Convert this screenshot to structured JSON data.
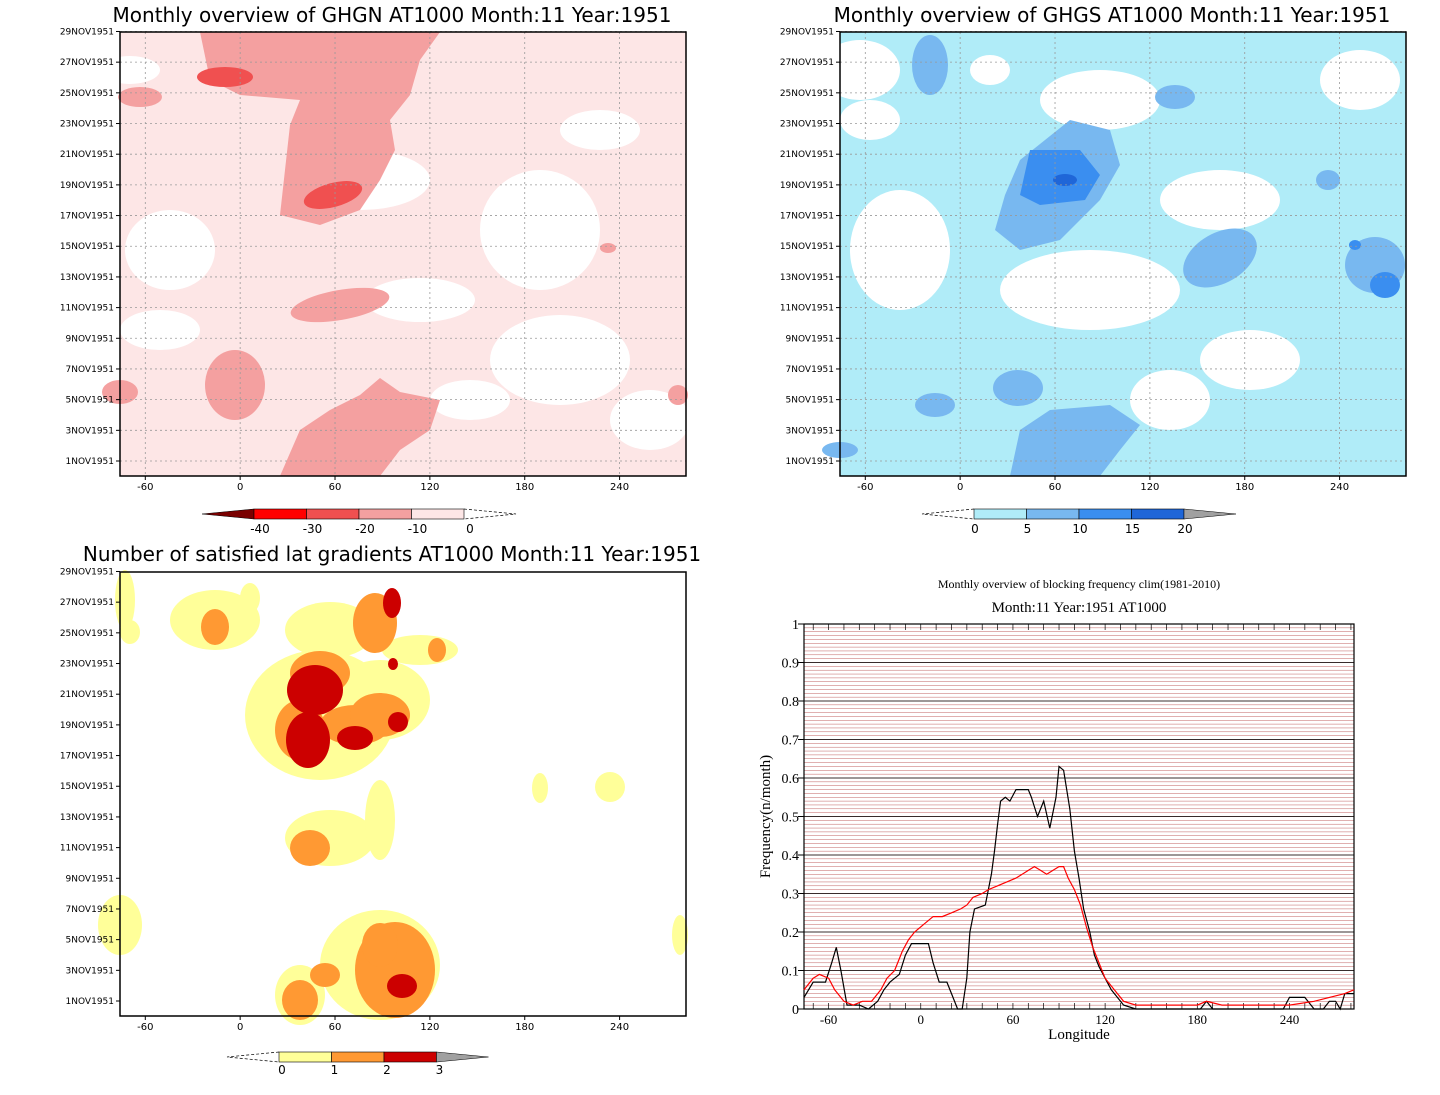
{
  "colors": {
    "ghgn": [
      "#7a0000",
      "#ff0000",
      "#f05050",
      "#f4a0a0",
      "#fde6e6"
    ],
    "ghgs": [
      "#b0ecf8",
      "#78b8f0",
      "#3a8ef0",
      "#1f66d8"
    ],
    "grad": [
      "#ffff99",
      "#ff9933",
      "#cc0000"
    ],
    "arrow_gray": "#a0a0a0",
    "line_black": "#000000",
    "line_red": "#ff0000",
    "hgrid": "#c06060"
  },
  "date_ticks": [
    "29NOV1951",
    "27NOV1951",
    "25NOV1951",
    "23NOV1951",
    "21NOV1951",
    "19NOV1951",
    "17NOV1951",
    "15NOV1951",
    "13NOV1951",
    "11NOV1951",
    "9NOV1951",
    "7NOV1951",
    "5NOV1951",
    "3NOV1951",
    "1NOV1951"
  ],
  "lon_ticks": [
    "-60",
    "0",
    "60",
    "120",
    "180",
    "240"
  ],
  "chart_data": [
    {
      "type": "heatmap",
      "title": "Monthly overview of GHGN AT1000 Month:11 Year:1951",
      "x_ticks": [
        "-60",
        "0",
        "60",
        "120",
        "180",
        "240"
      ],
      "y_ticks": [
        "1NOV1951",
        "3NOV1951",
        "5NOV1951",
        "7NOV1951",
        "9NOV1951",
        "11NOV1951",
        "13NOV1951",
        "15NOV1951",
        "17NOV1951",
        "19NOV1951",
        "21NOV1951",
        "23NOV1951",
        "25NOV1951",
        "27NOV1951",
        "29NOV1951"
      ],
      "colorbar": {
        "labels": [
          "-40",
          "-30",
          "-20",
          "-10",
          "0"
        ],
        "extend": "both"
      },
      "grid": true
    },
    {
      "type": "heatmap",
      "title": "Monthly overview of GHGS AT1000 Month:11 Year:1951",
      "x_ticks": [
        "-60",
        "0",
        "60",
        "120",
        "180",
        "240"
      ],
      "y_ticks": [
        "1NOV1951",
        "3NOV1951",
        "5NOV1951",
        "7NOV1951",
        "9NOV1951",
        "11NOV1951",
        "13NOV1951",
        "15NOV1951",
        "17NOV1951",
        "19NOV1951",
        "21NOV1951",
        "23NOV1951",
        "25NOV1951",
        "27NOV1951",
        "29NOV1951"
      ],
      "colorbar": {
        "labels": [
          "0",
          "5",
          "10",
          "15",
          "20"
        ],
        "extend": "both"
      },
      "grid": true
    },
    {
      "type": "heatmap",
      "title": "Number of satisfied lat gradients AT1000 Month:11 Year:1951",
      "x_ticks": [
        "-60",
        "0",
        "60",
        "120",
        "180",
        "240"
      ],
      "y_ticks": [
        "1NOV1951",
        "3NOV1951",
        "5NOV1951",
        "7NOV1951",
        "9NOV1951",
        "11NOV1951",
        "13NOV1951",
        "15NOV1951",
        "17NOV1951",
        "19NOV1951",
        "21NOV1951",
        "23NOV1951",
        "25NOV1951",
        "27NOV1951",
        "29NOV1951"
      ],
      "colorbar": {
        "labels": [
          "0",
          "1",
          "2",
          "3"
        ],
        "extend": "both"
      },
      "grid": false
    },
    {
      "type": "line",
      "title": "Monthly overview of blocking frequency clim(1981-2010)",
      "subtitle": "Month:11 Year:1951  AT1000",
      "xlabel": "Longitude",
      "ylabel": "Frequency(n/month)",
      "xlim": [
        -76,
        282
      ],
      "ylim": [
        0,
        1
      ],
      "x_ticks": [
        "-60",
        "0",
        "60",
        "120",
        "180",
        "240"
      ],
      "y_ticks": [
        "0",
        "0.1",
        "0.2",
        "0.3",
        "0.4",
        "0.5",
        "0.6",
        "0.7",
        "0.8",
        "0.9",
        "1"
      ],
      "series": [
        {
          "color": "black",
          "points": [
            [
              -76,
              0.03
            ],
            [
              -70,
              0.07
            ],
            [
              -62,
              0.07
            ],
            [
              -58,
              0.12
            ],
            [
              -55,
              0.16
            ],
            [
              -52,
              0.1
            ],
            [
              -48,
              0.01
            ],
            [
              -40,
              0.01
            ],
            [
              -34,
              0.0
            ],
            [
              -28,
              0.02
            ],
            [
              -24,
              0.05
            ],
            [
              -20,
              0.07
            ],
            [
              -14,
              0.09
            ],
            [
              -10,
              0.14
            ],
            [
              -6,
              0.17
            ],
            [
              0,
              0.17
            ],
            [
              5,
              0.17
            ],
            [
              8,
              0.12
            ],
            [
              12,
              0.07
            ],
            [
              17,
              0.07
            ],
            [
              20,
              0.04
            ],
            [
              24,
              0.0
            ],
            [
              27,
              0.0
            ],
            [
              30,
              0.08
            ],
            [
              32,
              0.2
            ],
            [
              35,
              0.26
            ],
            [
              42,
              0.27
            ],
            [
              46,
              0.35
            ],
            [
              48,
              0.41
            ],
            [
              50,
              0.48
            ],
            [
              52,
              0.54
            ],
            [
              55,
              0.55
            ],
            [
              58,
              0.54
            ],
            [
              62,
              0.57
            ],
            [
              70,
              0.57
            ],
            [
              72,
              0.55
            ],
            [
              76,
              0.5
            ],
            [
              80,
              0.54
            ],
            [
              84,
              0.47
            ],
            [
              88,
              0.55
            ],
            [
              90,
              0.63
            ],
            [
              93,
              0.62
            ],
            [
              97,
              0.52
            ],
            [
              100,
              0.41
            ],
            [
              103,
              0.34
            ],
            [
              106,
              0.26
            ],
            [
              110,
              0.2
            ],
            [
              113,
              0.14
            ],
            [
              116,
              0.11
            ],
            [
              120,
              0.08
            ],
            [
              124,
              0.05
            ],
            [
              128,
              0.03
            ],
            [
              132,
              0.01
            ],
            [
              140,
              0.0
            ],
            [
              182,
              0.0
            ],
            [
              186,
              0.02
            ],
            [
              190,
              0.0
            ],
            [
              236,
              0.0
            ],
            [
              240,
              0.03
            ],
            [
              250,
              0.03
            ],
            [
              256,
              0.0
            ],
            [
              262,
              0.0
            ],
            [
              266,
              0.02
            ],
            [
              270,
              0.02
            ],
            [
              273,
              0.0
            ],
            [
              276,
              0.04
            ],
            [
              282,
              0.04
            ]
          ]
        },
        {
          "color": "red",
          "points": [
            [
              -76,
              0.05
            ],
            [
              -70,
              0.08
            ],
            [
              -66,
              0.09
            ],
            [
              -60,
              0.08
            ],
            [
              -56,
              0.05
            ],
            [
              -50,
              0.02
            ],
            [
              -44,
              0.01
            ],
            [
              -38,
              0.02
            ],
            [
              -32,
              0.02
            ],
            [
              -26,
              0.05
            ],
            [
              -22,
              0.08
            ],
            [
              -17,
              0.1
            ],
            [
              -12,
              0.15
            ],
            [
              -8,
              0.18
            ],
            [
              -4,
              0.2
            ],
            [
              2,
              0.22
            ],
            [
              8,
              0.24
            ],
            [
              14,
              0.24
            ],
            [
              20,
              0.25
            ],
            [
              26,
              0.26
            ],
            [
              30,
              0.27
            ],
            [
              34,
              0.29
            ],
            [
              40,
              0.3
            ],
            [
              44,
              0.31
            ],
            [
              50,
              0.32
            ],
            [
              56,
              0.33
            ],
            [
              62,
              0.34
            ],
            [
              66,
              0.35
            ],
            [
              70,
              0.36
            ],
            [
              74,
              0.37
            ],
            [
              78,
              0.36
            ],
            [
              82,
              0.35
            ],
            [
              86,
              0.36
            ],
            [
              90,
              0.37
            ],
            [
              93,
              0.37
            ],
            [
              96,
              0.34
            ],
            [
              100,
              0.31
            ],
            [
              104,
              0.27
            ],
            [
              108,
              0.21
            ],
            [
              112,
              0.16
            ],
            [
              116,
              0.12
            ],
            [
              120,
              0.08
            ],
            [
              126,
              0.05
            ],
            [
              132,
              0.02
            ],
            [
              140,
              0.01
            ],
            [
              180,
              0.01
            ],
            [
              186,
              0.02
            ],
            [
              196,
              0.01
            ],
            [
              240,
              0.01
            ],
            [
              256,
              0.02
            ],
            [
              266,
              0.03
            ],
            [
              276,
              0.04
            ],
            [
              282,
              0.05
            ]
          ]
        }
      ],
      "grid": true
    }
  ]
}
